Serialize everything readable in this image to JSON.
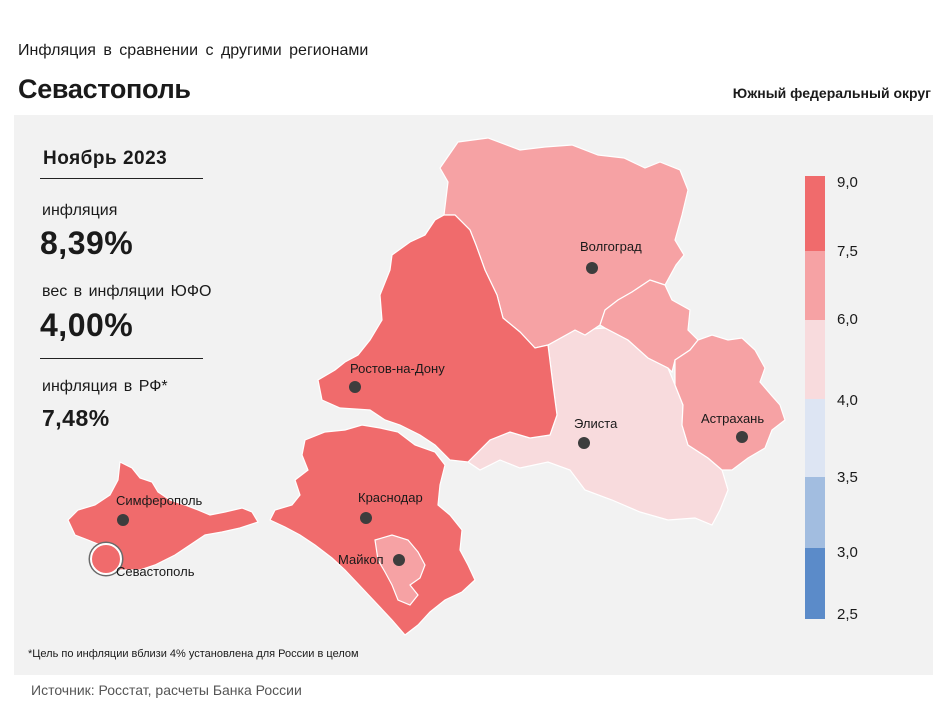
{
  "header": {
    "subtitle": "Инфляция  в сравнении  с другими  регионами",
    "title": "Севастополь",
    "district": "Южный федеральный округ"
  },
  "stats": {
    "period": "Ноябрь 2023",
    "inflation_label": "инфляция",
    "inflation_value": "8,39%",
    "weight_label": "вес в инфляции  ЮФО",
    "weight_value": "4,00%",
    "rf_label": "инфляция  в РФ*",
    "rf_value": "7,48%"
  },
  "regions": [
    {
      "name": "Волгоград",
      "level": "6,0–7,5",
      "color": "#f6a2a4"
    },
    {
      "name": "Астрахань",
      "level": "6,0–7,5",
      "color": "#f6a2a4"
    },
    {
      "name": "Элиста",
      "level": "4,0–6,0",
      "color": "#f8dbdd"
    },
    {
      "name": "Ростов-на-Дону",
      "level": "7,5–9,0",
      "color": "#f06b6c"
    },
    {
      "name": "Краснодар",
      "level": "7,5–9,0",
      "color": "#f06b6c"
    },
    {
      "name": "Майкоп",
      "level": "6,0–7,5",
      "color": "#f6a2a4"
    },
    {
      "name": "Симферополь",
      "level": "7,5–9,0",
      "color": "#f06b6c"
    },
    {
      "name": "Севастополь",
      "level": "7,5–9,0",
      "color": "#f06b6c"
    }
  ],
  "legend": {
    "ticks": [
      "9,0",
      "7,5",
      "6,0",
      "4,0",
      "3,5",
      "3,0",
      "2,5"
    ],
    "colors": [
      "#f06b6c",
      "#f6a2a4",
      "#f8dbdd",
      "#dde5f3",
      "#a2bde0",
      "#5b8bc9"
    ]
  },
  "footnote": "*Цель по инфляции вблизи 4% установлена для России в целом",
  "source": "Источник: Росстат, расчеты Банка России"
}
